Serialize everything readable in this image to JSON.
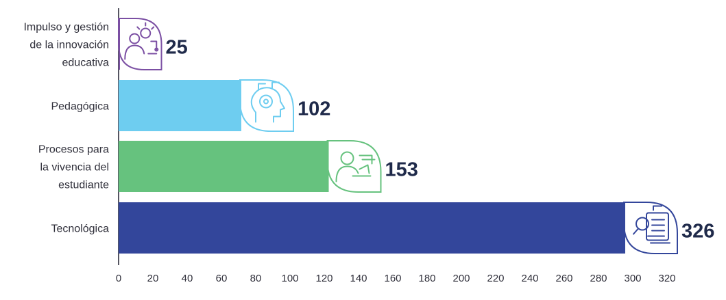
{
  "chart_data": {
    "type": "bar",
    "orientation": "horizontal",
    "title": "",
    "xlabel": "",
    "ylabel": "",
    "categories": [
      [
        "Impulso y gestión",
        "de la innovación",
        "educativa"
      ],
      [
        "Pedagógica"
      ],
      [
        "Procesos para",
        "la vivencia del",
        "estudiante"
      ],
      [
        "Tecnológica"
      ]
    ],
    "values": [
      25,
      102,
      153,
      326
    ],
    "value_labels": [
      "25",
      "102",
      "153",
      "326"
    ],
    "colors": [
      "#7b4fa3",
      "#6ecdf0",
      "#66c27e",
      "#33469b"
    ],
    "icons": [
      "innovation-person-lightbulb-icon",
      "brain-circuit-head-icon",
      "person-at-desk-icon",
      "document-magnifier-icon"
    ],
    "xlim": [
      0,
      320
    ],
    "xticks": [
      "0",
      "20",
      "40",
      "60",
      "80",
      "100",
      "120",
      "140",
      "160",
      "180",
      "200",
      "220",
      "240",
      "260",
      "280",
      "300",
      "320"
    ],
    "grid": false,
    "legend": "none"
  }
}
